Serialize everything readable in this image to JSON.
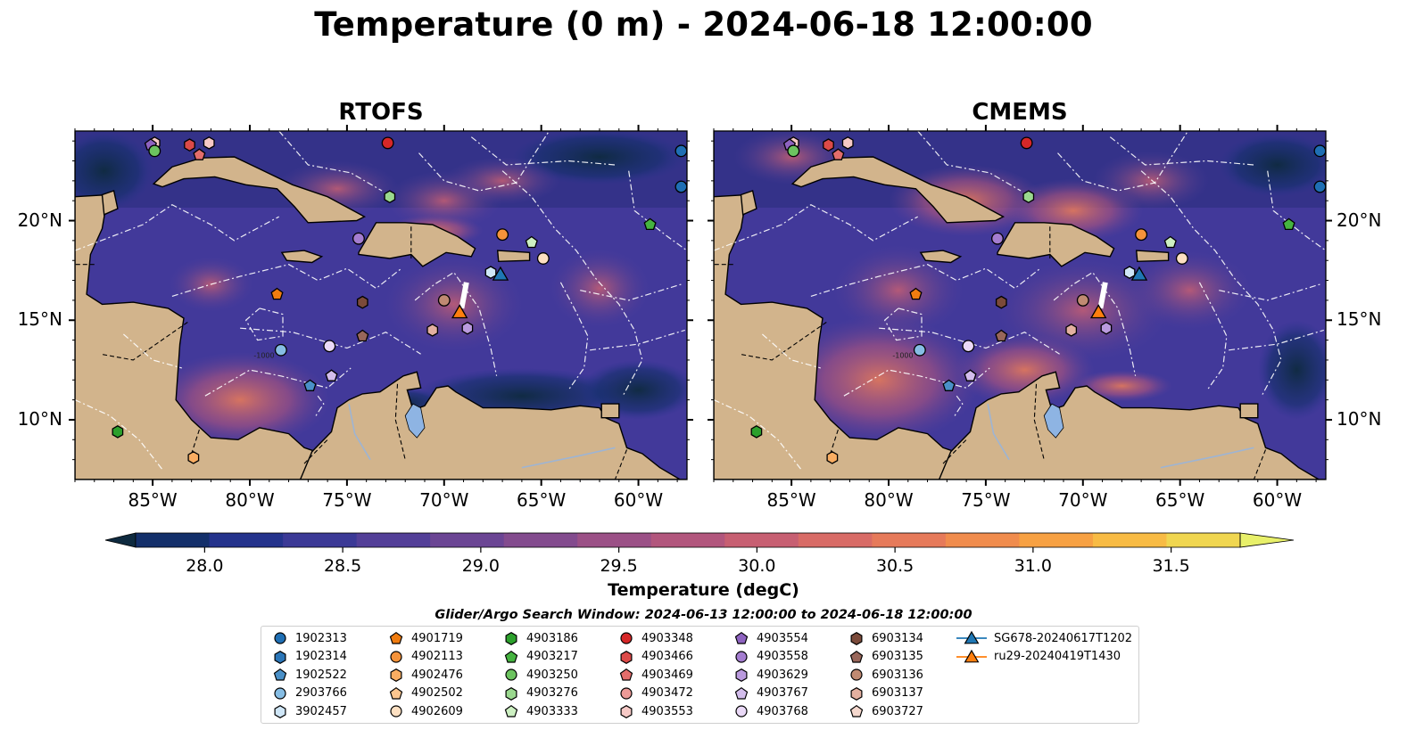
{
  "title": "Temperature (0 m) - 2024-06-18 12:00:00",
  "panels": [
    {
      "title": "RTOFS"
    },
    {
      "title": "CMEMS"
    }
  ],
  "map": {
    "lon_range": [
      -89,
      -57.5
    ],
    "lat_range": [
      7,
      24.5
    ],
    "lon_ticks": [
      "85°W",
      "80°W",
      "75°W",
      "70°W",
      "65°W",
      "60°W"
    ],
    "lat_ticks": [
      "20°N",
      "15°N",
      "10°N"
    ],
    "land_color": "#d2b48c",
    "lake_color": "#8eb4e3",
    "colormap": "thermal",
    "contour_label": "-1000"
  },
  "colorbar": {
    "ticks": [
      "28.0",
      "28.5",
      "29.0",
      "29.5",
      "30.0",
      "30.5",
      "31.0",
      "31.5"
    ],
    "min": 27.75,
    "max": 31.75,
    "extend": "both",
    "colors": [
      "#0e2a3f",
      "#132f6a",
      "#24338c",
      "#3b3996",
      "#533f98",
      "#6b4594",
      "#834b8e",
      "#9b5086",
      "#b2567d",
      "#c75f72",
      "#d86b66",
      "#e67a5a",
      "#f08c4d",
      "#f7a143",
      "#f8bb44",
      "#f0d650",
      "#e8f06a"
    ],
    "label": "Temperature (degC)"
  },
  "legend": {
    "title": "Glider/Argo Search Window: 2024-06-13 12:00:00 to 2024-06-18 12:00:00",
    "entries": [
      {
        "label": "1902313",
        "marker": "circle",
        "color": "#1f6fb4"
      },
      {
        "label": "1902314",
        "marker": "hexagon",
        "color": "#2b76b8"
      },
      {
        "label": "1902522",
        "marker": "pentagon",
        "color": "#4a90c8"
      },
      {
        "label": "2903766",
        "marker": "circle",
        "color": "#86bde4"
      },
      {
        "label": "3902457",
        "marker": "hexagon",
        "color": "#cfe6f7"
      },
      {
        "label": "4901719",
        "marker": "pentagon",
        "color": "#f07c10"
      },
      {
        "label": "4902113",
        "marker": "circle",
        "color": "#f5933a"
      },
      {
        "label": "4902476",
        "marker": "hexagon",
        "color": "#f9ad62"
      },
      {
        "label": "4902502",
        "marker": "pentagon",
        "color": "#fcc68f"
      },
      {
        "label": "4902609",
        "marker": "circle",
        "color": "#fde0c2"
      },
      {
        "label": "4903186",
        "marker": "hexagon",
        "color": "#2ca02c"
      },
      {
        "label": "4903217",
        "marker": "pentagon",
        "color": "#45b340"
      },
      {
        "label": "4903250",
        "marker": "circle",
        "color": "#6cc35f"
      },
      {
        "label": "4903276",
        "marker": "hexagon",
        "color": "#9ad88e"
      },
      {
        "label": "4903333",
        "marker": "pentagon",
        "color": "#cdf0c2"
      },
      {
        "label": "4903348",
        "marker": "circle",
        "color": "#d62728"
      },
      {
        "label": "4903466",
        "marker": "hexagon",
        "color": "#dc4a48"
      },
      {
        "label": "4903469",
        "marker": "pentagon",
        "color": "#e36d6b"
      },
      {
        "label": "4903472",
        "marker": "circle",
        "color": "#ec9a97"
      },
      {
        "label": "4903553",
        "marker": "hexagon",
        "color": "#f6c9c6"
      },
      {
        "label": "4903554",
        "marker": "pentagon",
        "color": "#8e63c0"
      },
      {
        "label": "4903558",
        "marker": "circle",
        "color": "#a47dd0"
      },
      {
        "label": "4903629",
        "marker": "hexagon",
        "color": "#ba9ade"
      },
      {
        "label": "4903767",
        "marker": "pentagon",
        "color": "#d3bdec"
      },
      {
        "label": "4903768",
        "marker": "circle",
        "color": "#ead9f7"
      },
      {
        "label": "6903134",
        "marker": "hexagon",
        "color": "#7b4a3a"
      },
      {
        "label": "6903135",
        "marker": "pentagon",
        "color": "#98665a"
      },
      {
        "label": "6903136",
        "marker": "circle",
        "color": "#c08a72"
      },
      {
        "label": "6903137",
        "marker": "hexagon",
        "color": "#e3b0a0"
      },
      {
        "label": "6903727",
        "marker": "pentagon",
        "color": "#f5d8ce"
      },
      {
        "label": "SG678-20240617T1202",
        "marker": "triangle-line",
        "color": "#1f77b4"
      },
      {
        "label": "ru29-20240419T1430",
        "marker": "triangle-line",
        "color": "#ff7f0e"
      }
    ]
  },
  "floats": [
    {
      "id": "1902313",
      "lon": -57.8,
      "lat": 23.5
    },
    {
      "id": "1902313",
      "lon": -57.8,
      "lat": 21.7
    },
    {
      "id": "4903348",
      "lon": -72.9,
      "lat": 23.9
    },
    {
      "id": "4903466",
      "lon": -83.1,
      "lat": 23.8
    },
    {
      "id": "4903469",
      "lon": -82.6,
      "lat": 23.3
    },
    {
      "id": "4903553",
      "lon": -84.9,
      "lat": 23.9
    },
    {
      "id": "4903553",
      "lon": -82.1,
      "lat": 23.9
    },
    {
      "id": "4903554",
      "lon": -85.1,
      "lat": 23.8
    },
    {
      "id": "4903250",
      "lon": -84.9,
      "lat": 23.5
    },
    {
      "id": "4903276",
      "lon": -72.8,
      "lat": 21.2
    },
    {
      "id": "4903217",
      "lon": -59.4,
      "lat": 19.8
    },
    {
      "id": "4903558",
      "lon": -74.4,
      "lat": 19.1
    },
    {
      "id": "4902113",
      "lon": -67.0,
      "lat": 19.3
    },
    {
      "id": "4903333",
      "lon": -65.5,
      "lat": 18.9
    },
    {
      "id": "3902457",
      "lon": -67.6,
      "lat": 17.4
    },
    {
      "id": "4902609",
      "lon": -64.9,
      "lat": 18.1
    },
    {
      "id": "4901719",
      "lon": -78.6,
      "lat": 16.3
    },
    {
      "id": "6903134",
      "lon": -74.2,
      "lat": 15.9
    },
    {
      "id": "6903136",
      "lon": -70.0,
      "lat": 16.0
    },
    {
      "id": "6903137",
      "lon": -70.6,
      "lat": 14.5
    },
    {
      "id": "6903135",
      "lon": -74.2,
      "lat": 14.2
    },
    {
      "id": "4903629",
      "lon": -68.8,
      "lat": 14.6
    },
    {
      "id": "2903766",
      "lon": -78.4,
      "lat": 13.5
    },
    {
      "id": "4903768",
      "lon": -75.9,
      "lat": 13.7
    },
    {
      "id": "4903767",
      "lon": -75.8,
      "lat": 12.2
    },
    {
      "id": "1902522",
      "lon": -76.9,
      "lat": 11.7
    },
    {
      "id": "4903186",
      "lon": -86.8,
      "lat": 9.4
    },
    {
      "id": "4902476",
      "lon": -82.9,
      "lat": 8.1
    }
  ],
  "gliders": [
    {
      "id": "SG678-20240617T1202",
      "lon": -67.1,
      "lat": 17.3
    },
    {
      "id": "ru29-20240419T1430",
      "lon": -69.2,
      "lat": 15.4
    }
  ]
}
